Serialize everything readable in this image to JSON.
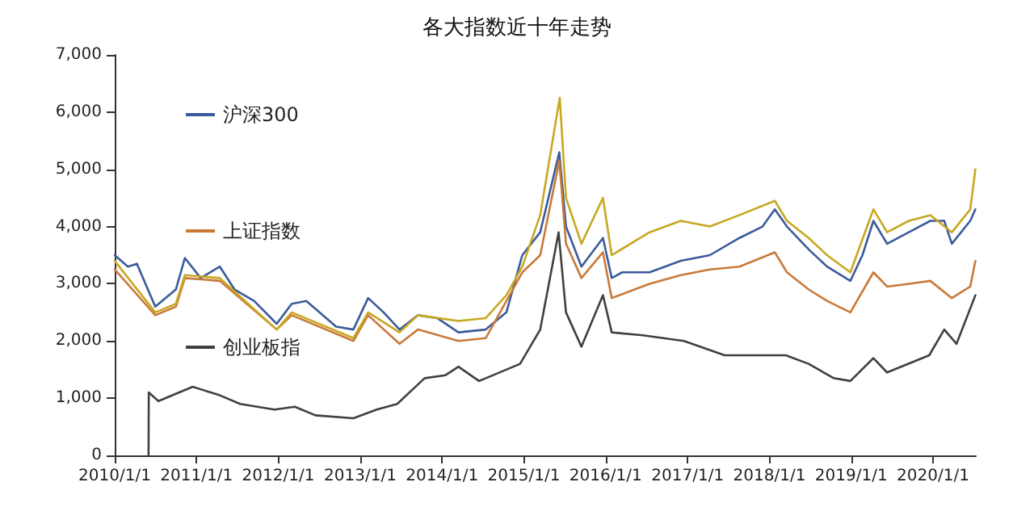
{
  "chart_data": {
    "type": "line",
    "title": "各大指数近十年走势",
    "xlim": [
      "2010-01-01",
      "2020-07-10"
    ],
    "xticks": [
      {
        "value": "2010-01-01",
        "label": "2010/1/1"
      },
      {
        "value": "2011-01-01",
        "label": "2011/1/1"
      },
      {
        "value": "2012-01-01",
        "label": "2012/1/1"
      },
      {
        "value": "2013-01-01",
        "label": "2013/1/1"
      },
      {
        "value": "2014-01-01",
        "label": "2014/1/1"
      },
      {
        "value": "2015-01-01",
        "label": "2015/1/1"
      },
      {
        "value": "2016-01-01",
        "label": "2016/1/1"
      },
      {
        "value": "2017-01-01",
        "label": "2017/1/1"
      },
      {
        "value": "2018-01-01",
        "label": "2018/1/1"
      },
      {
        "value": "2019-01-01",
        "label": "2019/1/1"
      },
      {
        "value": "2020-01-01",
        "label": "2020/1/1"
      }
    ],
    "ylim": [
      0,
      7000
    ],
    "yticks": [
      0,
      {
        "value": 1000,
        "label": "1,000"
      },
      {
        "value": 2000,
        "label": "2,000"
      },
      {
        "value": 3000,
        "label": "3,000"
      },
      {
        "value": 4000,
        "label": "4,000"
      },
      {
        "value": 5000,
        "label": "5,000"
      },
      {
        "value": 6000,
        "label": "6,000"
      },
      {
        "value": 7000,
        "label": "7,000"
      }
    ],
    "grid": false,
    "legend": "top left",
    "marker": "none",
    "line_style": "solid",
    "series": [
      {
        "name": "沪深300",
        "color": "#3b5b9b",
        "x": [
          "2010-01-01",
          "2010-03-01",
          "2010-04-10",
          "2010-07-01",
          "2010-10-01",
          "2010-11-10",
          "2011-01-20",
          "2011-04-15",
          "2011-06-20",
          "2011-09-15",
          "2011-12-25",
          "2012-03-01",
          "2012-05-05",
          "2012-09-15",
          "2012-12-01",
          "2013-02-05",
          "2013-04-15",
          "2013-06-25",
          "2013-09-15",
          "2013-12-10",
          "2014-03-15",
          "2014-07-15",
          "2014-10-15",
          "2014-12-25",
          "2015-03-15",
          "2015-06-08",
          "2015-07-08",
          "2015-09-15",
          "2015-12-20",
          "2016-01-28",
          "2016-03-15",
          "2016-07-15",
          "2016-12-01",
          "2017-04-10",
          "2017-08-20",
          "2017-12-01",
          "2018-01-25",
          "2018-03-20",
          "2018-06-25",
          "2018-09-15",
          "2018-12-28",
          "2019-02-20",
          "2019-04-10",
          "2019-06-10",
          "2019-09-15",
          "2019-12-20",
          "2020-02-20",
          "2020-03-25",
          "2020-06-15",
          "2020-07-08"
        ],
        "values": [
          3500,
          3300,
          3350,
          2600,
          2900,
          3450,
          3100,
          3300,
          2900,
          2700,
          2300,
          2650,
          2700,
          2250,
          2200,
          2750,
          2500,
          2200,
          2450,
          2400,
          2150,
          2200,
          2500,
          3500,
          3900,
          5300,
          4000,
          3300,
          3800,
          3100,
          3200,
          3200,
          3400,
          3500,
          3800,
          4000,
          4300,
          4000,
          3600,
          3300,
          3050,
          3500,
          4100,
          3700,
          3900,
          4100,
          4100,
          3700,
          4100,
          4300
        ]
      },
      {
        "name": "上证指数",
        "color": "#c87a3a",
        "x": [
          "2010-01-01",
          "2010-07-01",
          "2010-10-01",
          "2010-11-10",
          "2011-04-15",
          "2011-12-25",
          "2012-03-01",
          "2012-12-01",
          "2013-02-05",
          "2013-06-25",
          "2013-09-15",
          "2014-03-15",
          "2014-07-15",
          "2014-12-25",
          "2015-03-15",
          "2015-06-08",
          "2015-07-08",
          "2015-09-15",
          "2015-12-20",
          "2016-01-28",
          "2016-07-15",
          "2016-12-01",
          "2017-04-10",
          "2017-08-20",
          "2018-01-25",
          "2018-03-20",
          "2018-06-25",
          "2018-09-15",
          "2018-12-28",
          "2019-04-10",
          "2019-06-10",
          "2019-09-15",
          "2019-12-20",
          "2020-03-25",
          "2020-06-15",
          "2020-07-08"
        ],
        "values": [
          3250,
          2450,
          2600,
          3100,
          3050,
          2200,
          2450,
          2000,
          2450,
          1950,
          2200,
          2000,
          2050,
          3200,
          3500,
          5150,
          3700,
          3100,
          3550,
          2750,
          3000,
          3150,
          3250,
          3300,
          3550,
          3200,
          2900,
          2700,
          2500,
          3200,
          2950,
          3000,
          3050,
          2750,
          2950,
          3400
        ]
      },
      {
        "name": "创业板指",
        "color": "#404040",
        "x": [
          "2010-06-01",
          "2010-06-02",
          "2010-07-15",
          "2010-12-15",
          "2011-04-15",
          "2011-07-15",
          "2011-12-15",
          "2012-03-15",
          "2012-06-15",
          "2012-12-01",
          "2013-03-15",
          "2013-06-15",
          "2013-10-15",
          "2014-01-15",
          "2014-03-15",
          "2014-06-15",
          "2014-12-15",
          "2015-03-15",
          "2015-06-05",
          "2015-07-08",
          "2015-09-15",
          "2015-12-20",
          "2016-01-28",
          "2016-06-15",
          "2016-12-15",
          "2017-06-15",
          "2017-12-15",
          "2018-03-15",
          "2018-06-25",
          "2018-10-15",
          "2018-12-28",
          "2019-04-10",
          "2019-06-10",
          "2019-12-15",
          "2020-02-20",
          "2020-04-15",
          "2020-07-08"
        ],
        "values": [
          0,
          1100,
          950,
          1200,
          1050,
          900,
          800,
          850,
          700,
          650,
          800,
          900,
          1350,
          1400,
          1550,
          1300,
          1600,
          2200,
          3900,
          2500,
          1900,
          2800,
          2150,
          2100,
          2000,
          1750,
          1750,
          1750,
          1600,
          1350,
          1300,
          1700,
          1450,
          1750,
          2200,
          1950,
          2800
        ]
      },
      {
        "color": "#c8a820",
        "x": [
          "2010-01-01",
          "2010-07-01",
          "2010-10-01",
          "2010-11-10",
          "2011-04-15",
          "2011-12-25",
          "2012-03-01",
          "2012-12-01",
          "2013-02-05",
          "2013-06-25",
          "2013-09-15",
          "2014-03-15",
          "2014-07-15",
          "2014-10-15",
          "2014-12-25",
          "2015-03-15",
          "2015-06-10",
          "2015-07-08",
          "2015-09-15",
          "2015-12-20",
          "2016-01-28",
          "2016-07-15",
          "2016-12-01",
          "2017-04-10",
          "2017-08-20",
          "2018-01-25",
          "2018-03-20",
          "2018-06-25",
          "2018-09-15",
          "2018-12-28",
          "2019-04-10",
          "2019-06-10",
          "2019-09-15",
          "2019-12-20",
          "2020-03-25",
          "2020-06-15",
          "2020-07-08"
        ],
        "values": [
          3400,
          2500,
          2650,
          3150,
          3100,
          2200,
          2500,
          2050,
          2500,
          2150,
          2450,
          2350,
          2400,
          2800,
          3300,
          4200,
          6250,
          4500,
          3700,
          4500,
          3500,
          3900,
          4100,
          4000,
          4200,
          4450,
          4100,
          3800,
          3500,
          3200,
          4300,
          3900,
          4100,
          4200,
          3900,
          4300,
          5000
        ]
      }
    ]
  }
}
